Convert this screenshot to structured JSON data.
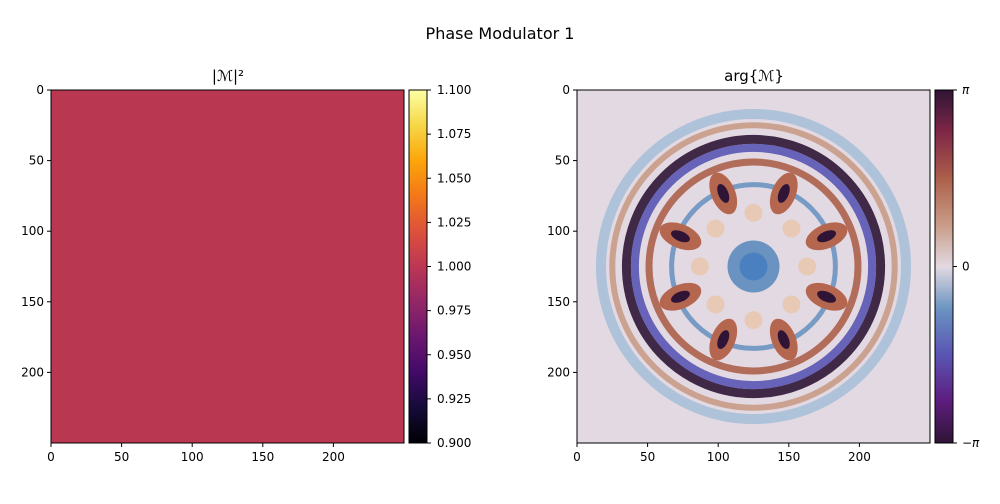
{
  "figure": {
    "title": "Phase Modulator 1"
  },
  "chart_data": [
    {
      "type": "heatmap",
      "title": "|ℳ|²",
      "x_ticks": [
        0,
        50,
        100,
        150,
        200
      ],
      "y_ticks": [
        0,
        50,
        100,
        150,
        200
      ],
      "xlim": [
        0,
        250
      ],
      "ylim": [
        250,
        0
      ],
      "uniform_value": 1.0,
      "uniform_color": "#b93750",
      "colormap": "inferno",
      "colorbar": {
        "range": [
          0.9,
          1.1
        ],
        "ticks": [
          "0.900",
          "0.925",
          "0.950",
          "0.975",
          "1.000",
          "1.025",
          "1.050",
          "1.075",
          "1.100"
        ]
      }
    },
    {
      "type": "heatmap",
      "title": "arg{ℳ}",
      "x_ticks": [
        0,
        50,
        100,
        150,
        200
      ],
      "y_ticks": [
        0,
        50,
        100,
        150,
        200
      ],
      "xlim": [
        0,
        250
      ],
      "ylim": [
        250,
        0
      ],
      "background_value": 0,
      "background_color": "#e2d9e2",
      "pattern": "8-fold symmetric phase pattern centered at (125,125), radius ~110",
      "colormap": "twilight_shifted",
      "colorbar": {
        "range": [
          "−π",
          "π"
        ],
        "ticks": [
          "π",
          "0",
          "−π"
        ]
      }
    }
  ]
}
